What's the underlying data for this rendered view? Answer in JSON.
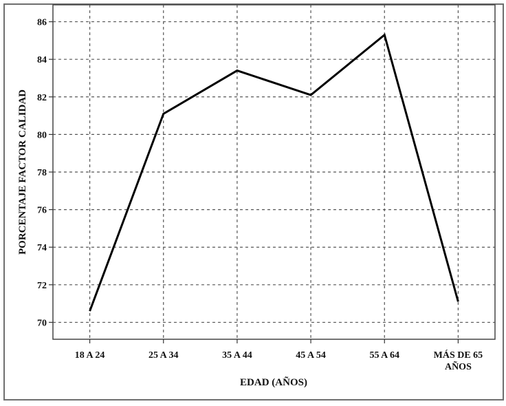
{
  "chart_data": {
    "type": "line",
    "title": "",
    "xlabel": "EDAD (AÑOS)",
    "ylabel": "PORCENTAJE FACTOR CALIDAD",
    "categories": [
      "18 A 24",
      "25 A 34",
      "35 A 44",
      "45 A 54",
      "55 A 64",
      "MÁS DE 65 AÑOS"
    ],
    "category_lines": [
      [
        "18 A 24"
      ],
      [
        "25 A 34"
      ],
      [
        "35 A 44"
      ],
      [
        "45 A 54"
      ],
      [
        "55 A 64"
      ],
      [
        "MÁS DE 65",
        "AÑOS"
      ]
    ],
    "series": [
      {
        "values": [
          70.6,
          81.1,
          83.4,
          82.1,
          85.3,
          71.1
        ],
        "color": "#000000"
      }
    ],
    "ylim": [
      69.1,
      86.9
    ],
    "yticks": [
      70,
      72,
      74,
      76,
      78,
      80,
      82,
      84,
      86
    ],
    "grid": true,
    "grid_style": "dashed"
  }
}
